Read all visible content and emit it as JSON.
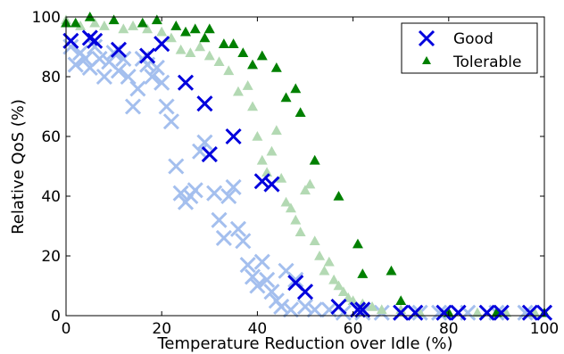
{
  "chart_data": {
    "type": "scatter",
    "title": "",
    "xlabel": "Temperature Reduction over Idle (%)",
    "ylabel": "Relative QoS (%)",
    "xlim": [
      0,
      100
    ],
    "ylim": [
      0,
      100
    ],
    "xticks": [
      0,
      20,
      40,
      60,
      80,
      100
    ],
    "yticks": [
      0,
      20,
      40,
      60,
      80,
      100
    ],
    "grid": false,
    "legend_position": "top-right",
    "series": [
      {
        "name": "Good",
        "marker": "x",
        "color": "#0000dd",
        "points": [
          [
            1,
            92
          ],
          [
            5,
            93
          ],
          [
            6,
            92
          ],
          [
            11,
            89
          ],
          [
            17,
            87
          ],
          [
            20,
            91
          ],
          [
            25,
            78
          ],
          [
            29,
            71
          ],
          [
            30,
            54
          ],
          [
            35,
            60
          ],
          [
            41,
            45
          ],
          [
            43,
            44
          ],
          [
            48,
            11
          ],
          [
            50,
            8
          ],
          [
            57,
            3
          ],
          [
            61,
            2
          ],
          [
            62,
            2
          ],
          [
            70,
            1
          ],
          [
            73,
            1
          ],
          [
            79,
            1
          ],
          [
            82,
            1
          ],
          [
            88,
            1
          ],
          [
            91,
            1
          ],
          [
            97,
            1
          ],
          [
            100,
            1
          ]
        ]
      },
      {
        "name": "Good (background)",
        "marker": "x",
        "color": "#a4bfee",
        "points": [
          [
            1,
            90
          ],
          [
            2,
            84
          ],
          [
            3,
            88
          ],
          [
            4,
            86
          ],
          [
            5,
            83
          ],
          [
            6,
            90
          ],
          [
            7,
            86
          ],
          [
            8,
            80
          ],
          [
            9,
            85
          ],
          [
            10,
            88
          ],
          [
            11,
            82
          ],
          [
            12,
            86
          ],
          [
            13,
            80
          ],
          [
            14,
            70
          ],
          [
            15,
            76
          ],
          [
            16,
            86
          ],
          [
            17,
            84
          ],
          [
            18,
            80
          ],
          [
            19,
            83
          ],
          [
            20,
            78
          ],
          [
            21,
            70
          ],
          [
            22,
            65
          ],
          [
            23,
            50
          ],
          [
            24,
            41
          ],
          [
            25,
            38
          ],
          [
            26,
            40
          ],
          [
            27,
            42
          ],
          [
            28,
            55
          ],
          [
            29,
            58
          ],
          [
            30,
            54
          ],
          [
            31,
            41
          ],
          [
            32,
            32
          ],
          [
            33,
            26
          ],
          [
            34,
            40
          ],
          [
            35,
            43
          ],
          [
            36,
            29
          ],
          [
            37,
            25
          ],
          [
            38,
            17
          ],
          [
            39,
            13
          ],
          [
            40,
            10
          ],
          [
            41,
            18
          ],
          [
            42,
            12
          ],
          [
            43,
            8
          ],
          [
            44,
            5
          ],
          [
            45,
            3
          ],
          [
            46,
            15
          ],
          [
            47,
            2
          ],
          [
            48,
            12
          ],
          [
            50,
            3
          ],
          [
            52,
            2
          ],
          [
            55,
            2
          ],
          [
            58,
            1
          ],
          [
            62,
            1
          ],
          [
            66,
            1
          ],
          [
            70,
            1
          ],
          [
            74,
            1
          ],
          [
            78,
            1
          ],
          [
            84,
            1
          ],
          [
            90,
            1
          ],
          [
            96,
            1
          ]
        ]
      },
      {
        "name": "Tolerable",
        "marker": "triangle",
        "color": "#008000",
        "points": [
          [
            0,
            98
          ],
          [
            2,
            98
          ],
          [
            5,
            100
          ],
          [
            10,
            99
          ],
          [
            16,
            98
          ],
          [
            19,
            99
          ],
          [
            23,
            97
          ],
          [
            25,
            95
          ],
          [
            27,
            96
          ],
          [
            29,
            93
          ],
          [
            30,
            96
          ],
          [
            33,
            91
          ],
          [
            35,
            91
          ],
          [
            37,
            88
          ],
          [
            39,
            84
          ],
          [
            41,
            87
          ],
          [
            44,
            83
          ],
          [
            46,
            73
          ],
          [
            48,
            76
          ],
          [
            49,
            68
          ],
          [
            52,
            52
          ],
          [
            57,
            40
          ],
          [
            61,
            24
          ],
          [
            62,
            14
          ],
          [
            68,
            15
          ],
          [
            70,
            5
          ],
          [
            80,
            1
          ],
          [
            90,
            1
          ],
          [
            100,
            1
          ]
        ]
      },
      {
        "name": "Tolerable (background)",
        "marker": "triangle",
        "color": "#b3d9b3",
        "points": [
          [
            0,
            99
          ],
          [
            3,
            97
          ],
          [
            6,
            98
          ],
          [
            8,
            97
          ],
          [
            12,
            96
          ],
          [
            14,
            97
          ],
          [
            17,
            96
          ],
          [
            20,
            95
          ],
          [
            22,
            93
          ],
          [
            24,
            89
          ],
          [
            26,
            88
          ],
          [
            28,
            90
          ],
          [
            30,
            87
          ],
          [
            32,
            85
          ],
          [
            34,
            82
          ],
          [
            36,
            75
          ],
          [
            38,
            77
          ],
          [
            39,
            70
          ],
          [
            40,
            60
          ],
          [
            41,
            52
          ],
          [
            42,
            48
          ],
          [
            43,
            55
          ],
          [
            44,
            62
          ],
          [
            45,
            46
          ],
          [
            46,
            38
          ],
          [
            47,
            36
          ],
          [
            48,
            32
          ],
          [
            49,
            28
          ],
          [
            50,
            42
          ],
          [
            51,
            44
          ],
          [
            52,
            25
          ],
          [
            53,
            20
          ],
          [
            54,
            15
          ],
          [
            55,
            18
          ],
          [
            56,
            12
          ],
          [
            57,
            10
          ],
          [
            58,
            8
          ],
          [
            59,
            6
          ],
          [
            60,
            5
          ],
          [
            62,
            4
          ],
          [
            64,
            3
          ],
          [
            66,
            2
          ],
          [
            70,
            2
          ],
          [
            74,
            1
          ],
          [
            80,
            1
          ],
          [
            86,
            1
          ],
          [
            92,
            1
          ],
          [
            98,
            1
          ]
        ]
      }
    ]
  },
  "legend": {
    "items": [
      {
        "label": "Good",
        "marker": "x",
        "color": "#0000dd"
      },
      {
        "label": "Tolerable",
        "marker": "triangle",
        "color": "#008000"
      }
    ]
  }
}
